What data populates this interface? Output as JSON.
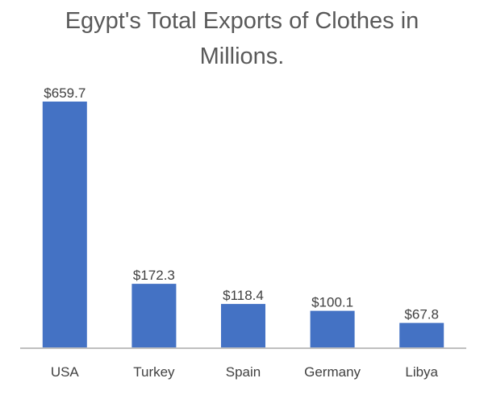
{
  "chart_data": {
    "type": "bar",
    "title": "Egypt's Total Exports of Clothes in Millions.",
    "categories": [
      "USA",
      "Turkey",
      "Spain",
      "Germany",
      "Libya"
    ],
    "values": [
      659.7,
      172.3,
      118.4,
      100.1,
      67.8
    ],
    "data_labels": [
      "$659.7",
      "$172.3",
      "$118.4",
      "$100.1",
      "$67.8"
    ],
    "xlabel": "",
    "ylabel": "",
    "ylim": [
      0,
      659.7
    ],
    "grid": false,
    "legend": "none",
    "colors": {
      "bar": "#4472C4",
      "axis": "#BFBFBF",
      "text": "#404040",
      "title": "#595959"
    }
  }
}
